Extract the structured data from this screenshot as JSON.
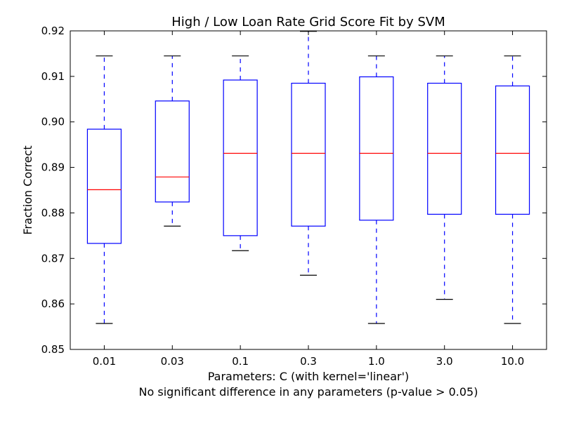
{
  "chart_data": {
    "type": "box",
    "title": "High / Low Loan Rate Grid Score Fit by SVM",
    "xlabel": "Parameters: C (with kernel='linear')",
    "xlabel_note": "No significant difference in any parameters (p-value > 0.05)",
    "ylabel": "Fraction Correct",
    "ylim": [
      0.85,
      0.92
    ],
    "yticks": [
      "0.85",
      "0.86",
      "0.87",
      "0.88",
      "0.89",
      "0.90",
      "0.91",
      "0.92"
    ],
    "categories": [
      "0.01",
      "0.03",
      "0.1",
      "0.3",
      "1.0",
      "3.0",
      "10.0"
    ],
    "boxes": [
      {
        "whisker_low": 0.8557,
        "q1": 0.8733,
        "median": 0.8851,
        "q3": 0.8984,
        "whisker_high": 0.9145
      },
      {
        "whisker_low": 0.8771,
        "q1": 0.8824,
        "median": 0.8879,
        "q3": 0.9046,
        "whisker_high": 0.9145
      },
      {
        "whisker_low": 0.8717,
        "q1": 0.875,
        "median": 0.8931,
        "q3": 0.9092,
        "whisker_high": 0.9145
      },
      {
        "whisker_low": 0.8663,
        "q1": 0.8771,
        "median": 0.8931,
        "q3": 0.9085,
        "whisker_high": 0.9199
      },
      {
        "whisker_low": 0.8557,
        "q1": 0.8784,
        "median": 0.8931,
        "q3": 0.9099,
        "whisker_high": 0.9145
      },
      {
        "whisker_low": 0.861,
        "q1": 0.8797,
        "median": 0.8931,
        "q3": 0.9085,
        "whisker_high": 0.9145
      },
      {
        "whisker_low": 0.8557,
        "q1": 0.8797,
        "median": 0.8931,
        "q3": 0.9079,
        "whisker_high": 0.9145
      }
    ],
    "colors": {
      "box": "#0000ff",
      "median": "#ff0000",
      "cap": "#000000",
      "axes": "#000000"
    },
    "grid": false
  }
}
